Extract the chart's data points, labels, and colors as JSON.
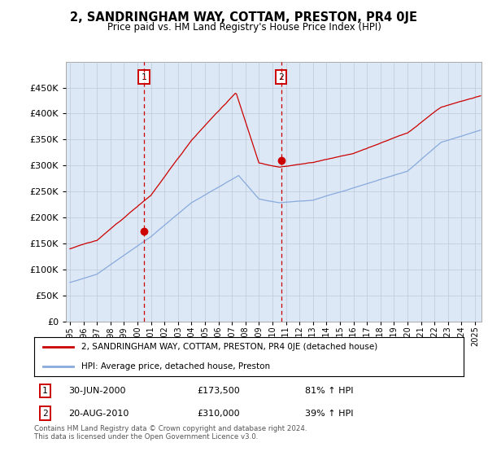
{
  "title": "2, SANDRINGHAM WAY, COTTAM, PRESTON, PR4 0JE",
  "subtitle": "Price paid vs. HM Land Registry's House Price Index (HPI)",
  "property_label": "2, SANDRINGHAM WAY, COTTAM, PRESTON, PR4 0JE (detached house)",
  "hpi_label": "HPI: Average price, detached house, Preston",
  "sale1_date": "30-JUN-2000",
  "sale1_price": 173500,
  "sale1_info": "81% ↑ HPI",
  "sale2_date": "20-AUG-2010",
  "sale2_price": 310000,
  "sale2_info": "39% ↑ HPI",
  "sale1_year": 2000.5,
  "sale2_year": 2010.64,
  "copyright": "Contains HM Land Registry data © Crown copyright and database right 2024.\nThis data is licensed under the Open Government Licence v3.0.",
  "ylim": [
    0,
    500000
  ],
  "xlim_start": 1994.7,
  "xlim_end": 2025.5,
  "property_color": "#cc0000",
  "hpi_color": "#88aadd",
  "background_color": "#dce8f5",
  "shade_color": "#dce8f5",
  "plot_bg": "#ffffff",
  "grid_color": "#c0c8d8"
}
